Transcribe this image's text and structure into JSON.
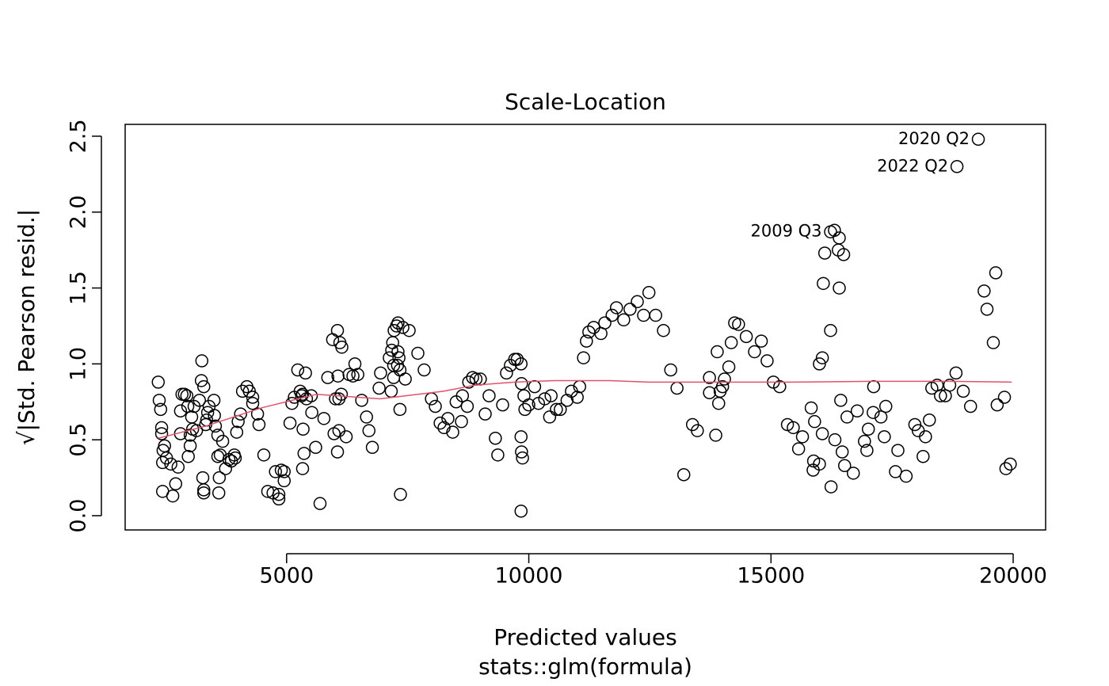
{
  "chart_data": {
    "type": "scatter",
    "title": "Scale-Location",
    "xlabel": "Predicted values",
    "subtitle": "stats::glm(formula)",
    "ylabel": "√|Std. Pearson resid.|",
    "color": "#000000",
    "xlim": [
      1667,
      20670
    ],
    "ylim": [
      -0.094,
      2.578
    ],
    "xticks": [
      5000,
      10000,
      15000,
      20000
    ],
    "yticks": [
      {
        "value": 0,
        "label": "0.0"
      },
      0.5,
      {
        "value": 1,
        "label": "1.0"
      },
      1.5,
      {
        "value": 2,
        "label": "2.0"
      },
      2.5
    ],
    "x": [
      2350,
      2370,
      2400,
      2420,
      2420,
      2440,
      2450,
      2440,
      2480,
      2520,
      2610,
      2650,
      2710,
      2760,
      2810,
      2810,
      2840,
      2890,
      2940,
      2960,
      2970,
      3010,
      3010,
      3060,
      3040,
      3090,
      3140,
      3200,
      3240,
      3250,
      3290,
      3270,
      3290,
      3290,
      3330,
      3350,
      3370,
      3400,
      3500,
      3510,
      3530,
      3580,
      3580,
      3610,
      3600,
      3630,
      3680,
      3740,
      3810,
      3860,
      3920,
      3940,
      3970,
      4000,
      4050,
      4090,
      4180,
      4230,
      4300,
      4300,
      4400,
      4430,
      4530,
      4610,
      4720,
      4770,
      4840,
      4840,
      4890,
      4950,
      4950,
      5070,
      5110,
      5160,
      5230,
      5280,
      5310,
      5330,
      5330,
      5360,
      5340,
      5390,
      5410,
      5510,
      5520,
      5600,
      5690,
      5770,
      5850,
      5950,
      5980,
      6010,
      6050,
      6050,
      6060,
      6080,
      6100,
      6140,
      6080,
      6130,
      6230,
      6290,
      6370,
      6410,
      6470,
      6550,
      6650,
      6700,
      6770,
      6910,
      6940,
      7120,
      7160,
      7170,
      7190,
      7210,
      7210,
      7220,
      7270,
      7300,
      7300,
      7320,
      7290,
      7340,
      7340,
      7350,
      7400,
      7450,
      7530,
      7710,
      7840,
      7990,
      8070,
      8170,
      8250,
      8330,
      8430,
      8500,
      8630,
      8610,
      8730,
      8760,
      8840,
      8910,
      9000,
      9100,
      9180,
      9310,
      9360,
      9460,
      9540,
      9620,
      9710,
      9760,
      9840,
      9850,
      9840,
      9850,
      9870,
      9840,
      9900,
      9920,
      10000,
      10120,
      10200,
      10330,
      10430,
      10460,
      10570,
      10650,
      10790,
      10880,
      11000,
      11050,
      11130,
      11190,
      11240,
      11340,
      11490,
      11570,
      11720,
      11810,
      11960,
      12090,
      12240,
      12370,
      12480,
      12620,
      12780,
      12930,
      13060,
      13200,
      13380,
      13480,
      13730,
      13730,
      13860,
      13890,
      13920,
      13950,
      14000,
      14040,
      14130,
      14180,
      14250,
      14330,
      14490,
      14660,
      14800,
      14920,
      15050,
      15180,
      15340,
      15460,
      15650,
      15570,
      15830,
      15870,
      15880,
      15900,
      16000,
      16000,
      16060,
      16060,
      16080,
      16110,
      16230,
      16230,
      16240,
      16310,
      16320,
      16410,
      16390,
      16410,
      16440,
      16470,
      16500,
      16520,
      16570,
      16700,
      16780,
      16930,
      16980,
      17010,
      17110,
      17120,
      17270,
      17340,
      17370,
      17570,
      17620,
      17790,
      17970,
      18040,
      18140,
      18190,
      18270,
      18320,
      18430,
      18500,
      18600,
      18690,
      18820,
      18970,
      19120,
      18840,
      19280,
      19400,
      19460,
      19590,
      19640,
      19670,
      19820,
      19850,
      19940
    ],
    "values": [
      0.88,
      0.76,
      0.7,
      0.58,
      0.54,
      0.16,
      0.43,
      0.35,
      0.46,
      0.38,
      0.34,
      0.13,
      0.21,
      0.32,
      0.54,
      0.69,
      0.8,
      0.8,
      0.79,
      0.72,
      0.39,
      0.46,
      0.53,
      0.57,
      0.65,
      0.72,
      0.56,
      0.76,
      0.89,
      1.02,
      0.85,
      0.25,
      0.17,
      0.15,
      0.6,
      0.63,
      0.68,
      0.72,
      0.76,
      0.66,
      0.59,
      0.53,
      0.39,
      0.25,
      0.15,
      0.4,
      0.49,
      0.31,
      0.37,
      0.36,
      0.4,
      0.38,
      0.55,
      0.62,
      0.67,
      0.82,
      0.85,
      0.82,
      0.78,
      0.74,
      0.67,
      0.6,
      0.4,
      0.16,
      0.15,
      0.29,
      0.14,
      0.11,
      0.3,
      0.29,
      0.23,
      0.61,
      0.74,
      0.78,
      0.96,
      0.82,
      0.79,
      0.8,
      0.31,
      0.41,
      0.57,
      0.94,
      0.77,
      0.79,
      0.68,
      0.45,
      0.08,
      0.64,
      0.91,
      1.16,
      0.54,
      0.77,
      0.42,
      1.22,
      0.92,
      0.56,
      1.14,
      1.11,
      0.77,
      0.8,
      0.52,
      0.93,
      0.92,
      1.0,
      0.93,
      0.76,
      0.65,
      0.56,
      0.45,
      0.84,
      0.94,
      1.04,
      0.82,
      1.09,
      1.14,
      0.91,
      0.99,
      1.22,
      1.25,
      1.27,
      1.08,
      1.04,
      0.99,
      0.96,
      0.7,
      0.14,
      1.24,
      0.9,
      1.22,
      1.07,
      0.96,
      0.77,
      0.72,
      0.61,
      0.58,
      0.64,
      0.55,
      0.75,
      0.79,
      0.62,
      0.72,
      0.88,
      0.91,
      0.9,
      0.9,
      0.67,
      0.79,
      0.51,
      0.4,
      0.73,
      0.94,
      0.99,
      1.03,
      1.03,
      1.0,
      0.87,
      0.52,
      0.42,
      0.38,
      0.03,
      0.79,
      0.7,
      0.73,
      0.85,
      0.74,
      0.77,
      0.65,
      0.79,
      0.7,
      0.7,
      0.76,
      0.82,
      0.78,
      0.85,
      1.04,
      1.15,
      1.21,
      1.24,
      1.2,
      1.27,
      1.32,
      1.37,
      1.29,
      1.36,
      1.41,
      1.32,
      1.47,
      1.32,
      1.22,
      0.96,
      0.84,
      0.27,
      0.6,
      0.56,
      0.91,
      0.81,
      0.53,
      1.08,
      0.74,
      0.82,
      0.85,
      0.9,
      0.98,
      1.14,
      1.27,
      1.26,
      1.18,
      1.08,
      1.15,
      1.02,
      0.88,
      0.85,
      0.6,
      0.58,
      0.52,
      0.44,
      0.71,
      0.3,
      0.36,
      0.62,
      0.34,
      1.0,
      0.54,
      1.04,
      1.53,
      1.73,
      1.87,
      1.22,
      0.19,
      1.88,
      0.5,
      1.83,
      1.75,
      1.5,
      0.76,
      0.42,
      1.72,
      0.33,
      0.65,
      0.28,
      0.69,
      0.49,
      0.43,
      0.57,
      0.68,
      0.85,
      0.65,
      0.52,
      0.72,
      0.29,
      0.43,
      0.26,
      0.6,
      0.56,
      0.39,
      0.52,
      0.63,
      0.84,
      0.86,
      0.79,
      0.79,
      0.86,
      0.94,
      0.82,
      0.72,
      2.3,
      2.48,
      1.48,
      1.36,
      1.14,
      1.6,
      0.73,
      0.78,
      0.31,
      0.34
    ],
    "smooth": {
      "color": "#df536b",
      "x": [
        2350,
        3330,
        4480,
        5620,
        6930,
        8240,
        8890,
        9710,
        10520,
        11670,
        12480,
        13790,
        15420,
        17060,
        18690,
        19970
      ],
      "y": [
        0.51,
        0.59,
        0.71,
        0.8,
        0.77,
        0.82,
        0.86,
        0.88,
        0.89,
        0.89,
        0.88,
        0.88,
        0.88,
        0.885,
        0.885,
        0.88
      ]
    },
    "annotations": [
      {
        "text": "2020 Q2",
        "x": 19280,
        "y": 2.48
      },
      {
        "text": "2022 Q2",
        "x": 18840,
        "y": 2.3
      },
      {
        "text": "2009 Q3",
        "x": 16230,
        "y": 1.87
      }
    ]
  }
}
